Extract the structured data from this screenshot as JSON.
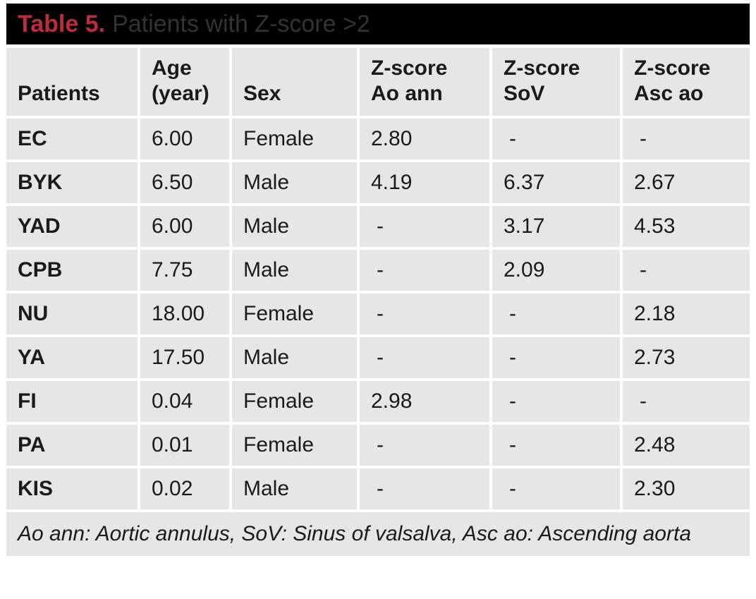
{
  "title": {
    "label": "Table 5.",
    "text": "Patients with Z-score >2"
  },
  "table": {
    "columns": [
      "Patients",
      "Age (year)",
      "Sex",
      "Z-score Ao ann",
      "Z-score SoV",
      "Z-score Asc ao"
    ],
    "rows": [
      [
        "EC",
        "6.00",
        "Female",
        "2.80",
        "-",
        "-"
      ],
      [
        "BYK",
        "6.50",
        "Male",
        "4.19",
        "6.37",
        "2.67"
      ],
      [
        "YAD",
        "6.00",
        "Male",
        "-",
        "3.17",
        "4.53"
      ],
      [
        "CPB",
        "7.75",
        "Male",
        "-",
        "2.09",
        "-"
      ],
      [
        "NU",
        "18.00",
        "Female",
        "-",
        "-",
        "2.18"
      ],
      [
        "YA",
        "17.50",
        "Male",
        "-",
        "-",
        "2.73"
      ],
      [
        "FI",
        "0.04",
        "Female",
        "2.98",
        "-",
        "-"
      ],
      [
        "PA",
        "0.01",
        "Female",
        "-",
        "-",
        "2.48"
      ],
      [
        "KIS",
        "0.02",
        "Male",
        "-",
        "-",
        "2.30"
      ]
    ],
    "footnote": "Ao ann: Aortic annulus, SoV: Sinus of valsalva, Asc ao: Ascending aorta"
  },
  "colors": {
    "title_label": "#c02b3a",
    "title_text": "#333333",
    "title_bar_bg": "#000000",
    "cell_bg": "#e6e6e6",
    "cell_text": "#1a1a1a"
  }
}
